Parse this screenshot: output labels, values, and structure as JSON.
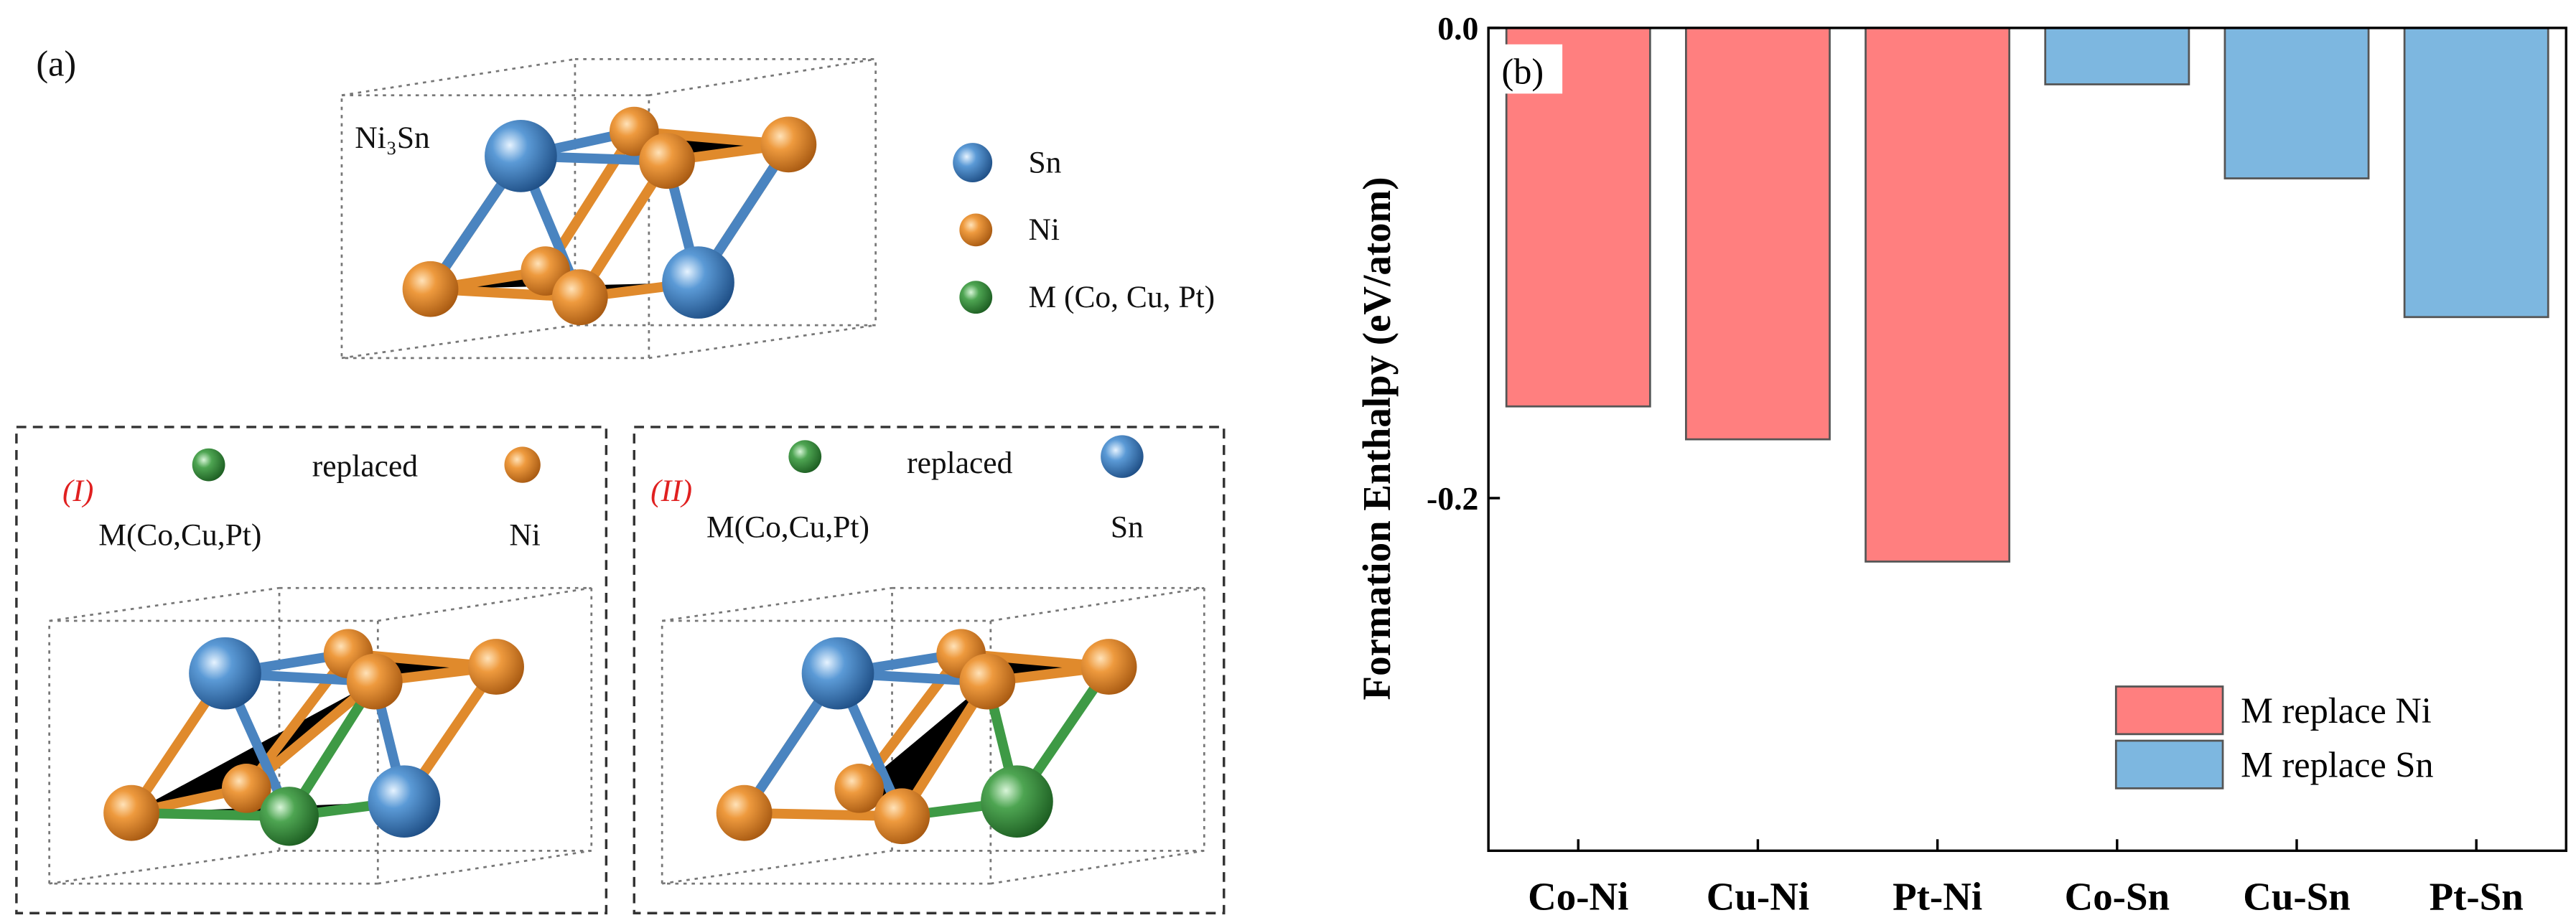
{
  "panel_a": {
    "label": "(a)",
    "structure": "Ni₃Sn",
    "legend": [
      "Sn",
      "Ni",
      "M (Co, Cu, Pt)"
    ],
    "case_1": {
      "label": "(I)",
      "replaced": "replaced",
      "from": "M(Co,Cu,Pt)",
      "to": "Ni"
    },
    "case_2": {
      "label": "(II)",
      "replaced": "replaced",
      "from": "M(Co,Cu,Pt)",
      "to": "Sn"
    }
  },
  "chart_data": {
    "type": "bar",
    "panel_label": "(b)",
    "y_label": "Formation Enthalpy (eV/atom)",
    "categories": [
      "Co-Ni",
      "Cu-Ni",
      "Pt-Ni",
      "Co-Sn",
      "Cu-Sn",
      "Pt-Sn"
    ],
    "series": [
      {
        "name": "M replace Ni",
        "color": "#ff7f7f",
        "values": [
          -0.161,
          -0.175,
          -0.227,
          null,
          null,
          null
        ]
      },
      {
        "name": "M replace Sn",
        "color": "#7db7e0",
        "values": [
          null,
          null,
          null,
          -0.024,
          -0.064,
          -0.123
        ]
      }
    ],
    "ylim": [
      -0.35,
      0
    ],
    "yticks": [
      {
        "value": 0,
        "label": "0.0"
      },
      -0.2
    ],
    "legend_position": "lower right"
  }
}
